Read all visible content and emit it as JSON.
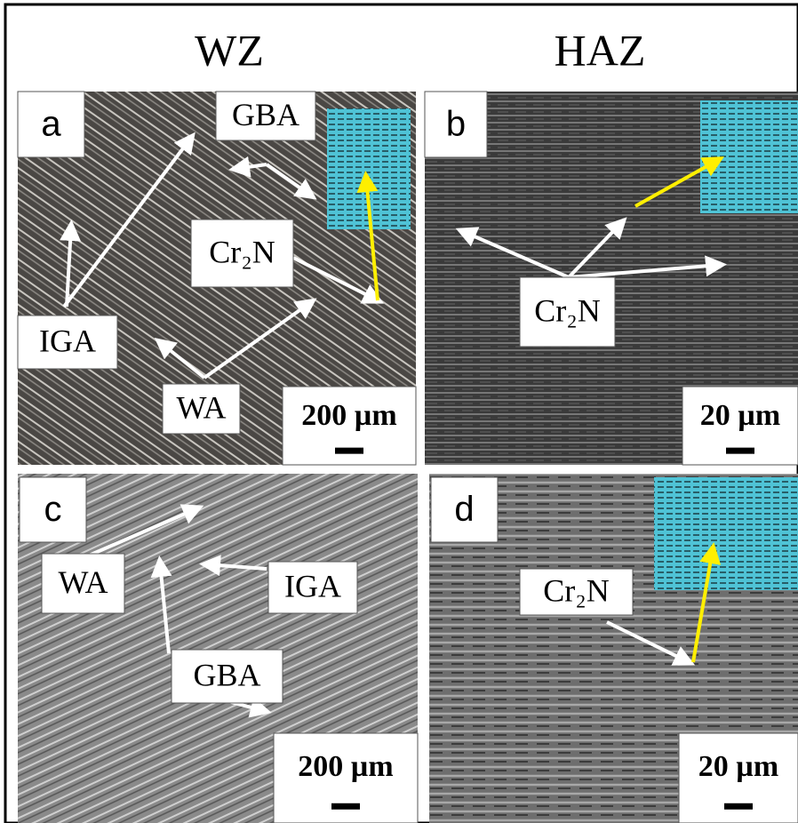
{
  "columns": [
    "WZ",
    "HAZ"
  ],
  "panels": [
    {
      "letter": "a",
      "labels": [
        "GBA",
        "Cr₂N",
        "IGA",
        "WA"
      ],
      "scale": "200 µm"
    },
    {
      "letter": "b",
      "labels": [
        "Cr₂N"
      ],
      "scale": "20 µm"
    },
    {
      "letter": "c",
      "labels": [
        "WA",
        "IGA",
        "GBA"
      ],
      "scale": "200 µm"
    },
    {
      "letter": "d",
      "labels": [
        "Cr₂N"
      ],
      "scale": "20 µm"
    }
  ]
}
